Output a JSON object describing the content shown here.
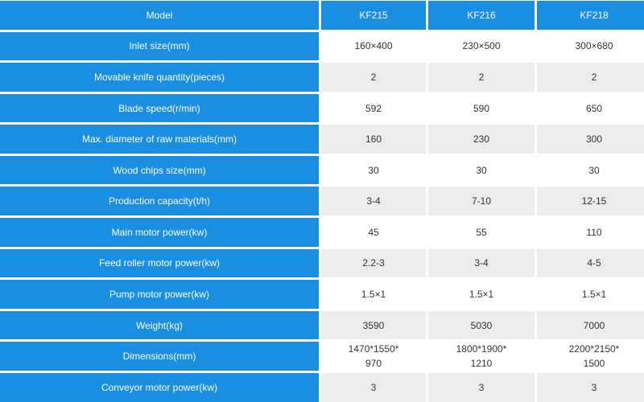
{
  "table": {
    "header": {
      "label": "Model",
      "models": [
        "KF215",
        "KF216",
        "KF218"
      ]
    },
    "rows": [
      {
        "label": "Inlet size(mm)",
        "values": [
          "160×400",
          "230×500",
          "300×680"
        ]
      },
      {
        "label": "Movable knife quantity(pieces)",
        "values": [
          "2",
          "2",
          "2"
        ]
      },
      {
        "label": "Blade speed(r/min)",
        "values": [
          "592",
          "590",
          "650"
        ]
      },
      {
        "label": "Max. diameter of raw materials(mm)",
        "values": [
          "160",
          "230",
          "300"
        ]
      },
      {
        "label": "Wood chips size(mm)",
        "values": [
          "30",
          "30",
          "30"
        ]
      },
      {
        "label": "Production capacity(t/h)",
        "values": [
          "3-4",
          "7-10",
          "12-15"
        ]
      },
      {
        "label": "Main motor power(kw)",
        "values": [
          "45",
          "55",
          "110"
        ]
      },
      {
        "label": "Feed roller motor power(kw)",
        "values": [
          "2.2-3",
          "3-4",
          "4-5"
        ]
      },
      {
        "label": "Pump motor power(kw)",
        "values": [
          "1.5×1",
          "1.5×1",
          "1.5×1"
        ]
      },
      {
        "label": "Weight(kg)",
        "values": [
          "3590",
          "5030",
          "7000"
        ]
      },
      {
        "label": "Dimensions(mm)",
        "values": [
          [
            "1470*1550*",
            "970"
          ],
          [
            "1800*1900*",
            "1210"
          ],
          [
            "2200*2150*",
            "1500"
          ]
        ]
      },
      {
        "label": "Conveyor motor power(kw)",
        "values": [
          "3",
          "3",
          "3"
        ]
      }
    ]
  },
  "colors": {
    "header_blue": "#1a8ee0",
    "row_gray": "#ececec",
    "row_white": "#ffffff",
    "text": "#333333"
  }
}
